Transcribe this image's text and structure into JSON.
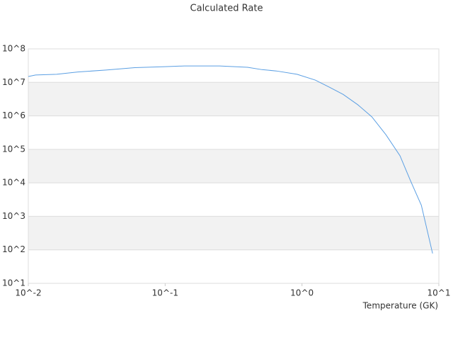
{
  "chart_data": {
    "type": "line",
    "title": "Calculated Rate",
    "x_label": "Temperature (GK)",
    "x": [
      0.01,
      0.0113,
      0.0161,
      0.023,
      0.037,
      0.06,
      0.1,
      0.138,
      0.25,
      0.4,
      0.51,
      0.65,
      0.92,
      1.25,
      1.58,
      2.0,
      2.56,
      3.24,
      4.1,
      5.2,
      6.2,
      7.45,
      9.0
    ],
    "values": [
      15000000,
      16600000,
      17400000,
      20400000,
      23400000,
      27500000,
      29500000,
      30900000,
      30900000,
      28200000,
      24000000,
      21900000,
      17400000,
      11700000,
      7240000,
      4370000,
      2140000,
      933000,
      275000,
      64600,
      11700,
      2140,
      78
    ],
    "color": "#5b9fe3",
    "xlim": [
      0.01,
      10
    ],
    "ylim": [
      10,
      100000000
    ],
    "x_log": true,
    "y_log": true,
    "xticks": [
      {
        "value": 0.01,
        "label": "10^-2"
      },
      {
        "value": 0.1,
        "label": "10^-1"
      },
      {
        "value": 1,
        "label": "10^0"
      },
      {
        "value": 10,
        "label": "10^1"
      }
    ],
    "yticks": [
      {
        "value": 10,
        "label": "10^1"
      },
      {
        "value": 100,
        "label": "10^2"
      },
      {
        "value": 1000,
        "label": "10^3"
      },
      {
        "value": 10000,
        "label": "10^4"
      },
      {
        "value": 100000,
        "label": "10^5"
      },
      {
        "value": 1000000,
        "label": "10^6"
      },
      {
        "value": 10000000,
        "label": "10^7"
      },
      {
        "value": 100000000,
        "label": "10^8"
      }
    ],
    "grid": true,
    "alternating_bands": true
  }
}
